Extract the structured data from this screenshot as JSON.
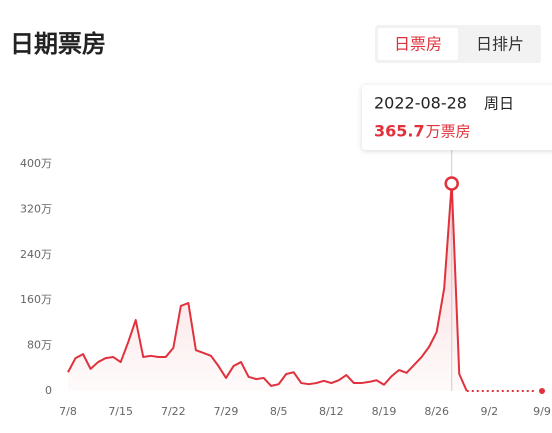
{
  "header": {
    "title": "日期票房",
    "tabs": [
      "日票房",
      "日排片"
    ]
  },
  "chart_data": {
    "type": "line",
    "color": "#e0313c",
    "grid": false,
    "categories": [
      "7/8",
      null,
      null,
      null,
      null,
      null,
      null,
      "7/15",
      null,
      null,
      null,
      null,
      null,
      null,
      "7/22",
      null,
      null,
      null,
      null,
      null,
      null,
      "7/29",
      null,
      null,
      null,
      null,
      null,
      null,
      "8/5",
      null,
      null,
      null,
      null,
      null,
      null,
      "8/12",
      null,
      null,
      null,
      null,
      null,
      null,
      "8/19",
      null,
      null,
      null,
      null,
      null,
      null,
      "8/26",
      null,
      null,
      null,
      null,
      null,
      null,
      "9/2",
      null,
      null,
      null,
      null,
      null,
      null,
      "9/9"
    ],
    "values": [
      33,
      58,
      65,
      39,
      51,
      58,
      60,
      51,
      86,
      125,
      60,
      62,
      60,
      60,
      76,
      150,
      155,
      72,
      67,
      62,
      44,
      23,
      44,
      51,
      25,
      21,
      23,
      9,
      12,
      30,
      33,
      14,
      12,
      14,
      18,
      14,
      19,
      28,
      14,
      14,
      16,
      19,
      11,
      26,
      37,
      32,
      46,
      60,
      78,
      104,
      181,
      365.7,
      30,
      0,
      0,
      0,
      0,
      0,
      0,
      0,
      0,
      0,
      0,
      0
    ],
    "ylim": [
      0,
      400
    ],
    "yticks": [
      0,
      {
        "value": 80,
        "label": "80万"
      },
      {
        "value": 160,
        "label": "160万"
      },
      {
        "value": 240,
        "label": "240万"
      },
      {
        "value": 320,
        "label": "320万"
      },
      {
        "value": 400,
        "label": "400万"
      }
    ],
    "tooltip": {
      "date": "2022-08-28",
      "weekday": "周日",
      "unit": "万票房"
    }
  }
}
